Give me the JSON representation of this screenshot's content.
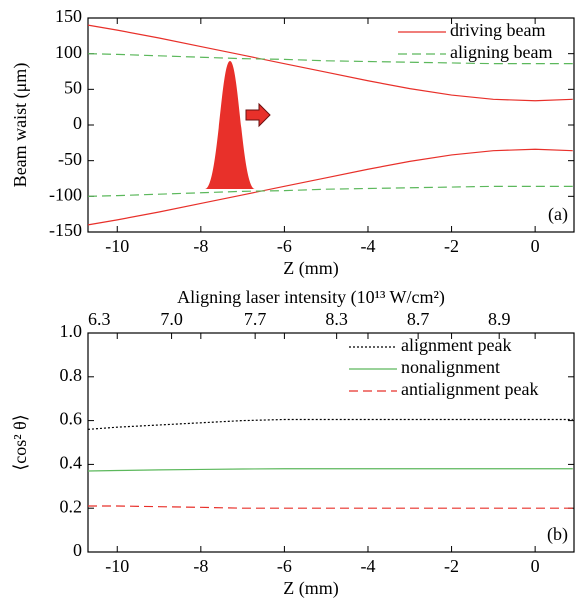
{
  "chart_data": [
    {
      "type": "line",
      "panel_label": "(a)",
      "xlabel": "Z (mm)",
      "ylabel": "Beam waist (μm)",
      "xlim": [
        -10.7,
        0.93
      ],
      "xticks": [
        -10,
        -8,
        -6,
        -4,
        -2,
        0
      ],
      "ylim": [
        -150,
        150
      ],
      "yticks": [
        -150,
        -100,
        -50,
        0,
        50,
        100,
        150
      ],
      "legend": "upper right",
      "x": [
        -10.7,
        -10,
        -9,
        -8,
        -7,
        -6,
        -5,
        -4,
        -3,
        -2,
        -1,
        0,
        0.9
      ],
      "series": [
        {
          "name": "driving beam",
          "color": "#e8302a",
          "dash": "solid",
          "values": [
            140,
            133,
            122,
            110,
            98,
            86,
            74,
            62,
            51,
            42,
            36,
            34,
            36
          ]
        },
        {
          "color": "#e8302a",
          "dash": "solid",
          "values": [
            -140,
            -133,
            -122,
            -110,
            -98,
            -86,
            -74,
            -62,
            -51,
            -42,
            -36,
            -34,
            -36
          ]
        },
        {
          "name": "aligning beam",
          "color": "#5cb85c",
          "dash": "dashed",
          "values": [
            100,
            99,
            97,
            95,
            93,
            92,
            90,
            89,
            88,
            87,
            86,
            86,
            86
          ]
        },
        {
          "color": "#5cb85c",
          "dash": "dashed",
          "values": [
            -100,
            -99,
            -97,
            -95,
            -93,
            -92,
            -90,
            -89,
            -88,
            -87,
            -86,
            -86,
            -86
          ]
        }
      ]
    },
    {
      "type": "line",
      "panel_label": "(b)",
      "xlabel": "Z (mm)",
      "ylabel": "⟨cos² θ⟩",
      "x2label": "Aligning laser intensity (10¹³ W/cm²)",
      "xlim": [
        -10.7,
        0.93
      ],
      "xticks": [
        -10,
        -8,
        -6,
        -4,
        -2,
        0
      ],
      "x2ticks": [
        {
          "value": -10.7,
          "label": "6.3"
        },
        {
          "value": -8.7,
          "label": "7.0"
        },
        {
          "value": -6.7,
          "label": "7.7"
        },
        {
          "value": -4.75,
          "label": "8.3"
        },
        {
          "value": -2.8,
          "label": "8.7"
        },
        {
          "value": -0.86,
          "label": "8.9"
        }
      ],
      "ylim": [
        0,
        1.0
      ],
      "yticks": [
        0,
        0.2,
        0.4,
        0.6,
        0.8,
        {
          "value": 1.0,
          "label": "1.0"
        }
      ],
      "legend": "upper right",
      "x": [
        -10.7,
        -10,
        -9,
        -8,
        -7,
        -6,
        -5,
        -4,
        -3,
        -2,
        -1,
        0,
        0.9
      ],
      "series": [
        {
          "name": "alignment peak",
          "color": "#000000",
          "dash": "dotted",
          "values": [
            0.56,
            0.57,
            0.58,
            0.59,
            0.6,
            0.605,
            0.605,
            0.605,
            0.605,
            0.605,
            0.605,
            0.605,
            0.605
          ]
        },
        {
          "name": "nonalignment",
          "color": "#5cb85c",
          "dash": "solid",
          "values": [
            0.37,
            0.372,
            0.375,
            0.377,
            0.379,
            0.38,
            0.38,
            0.38,
            0.38,
            0.38,
            0.38,
            0.38,
            0.38
          ]
        },
        {
          "name": "antialignment peak",
          "color": "#e8302a",
          "dash": "dashed",
          "values": [
            0.21,
            0.21,
            0.207,
            0.204,
            0.2,
            0.2,
            0.2,
            0.2,
            0.2,
            0.2,
            0.2,
            0.2,
            0.2
          ]
        }
      ]
    }
  ]
}
